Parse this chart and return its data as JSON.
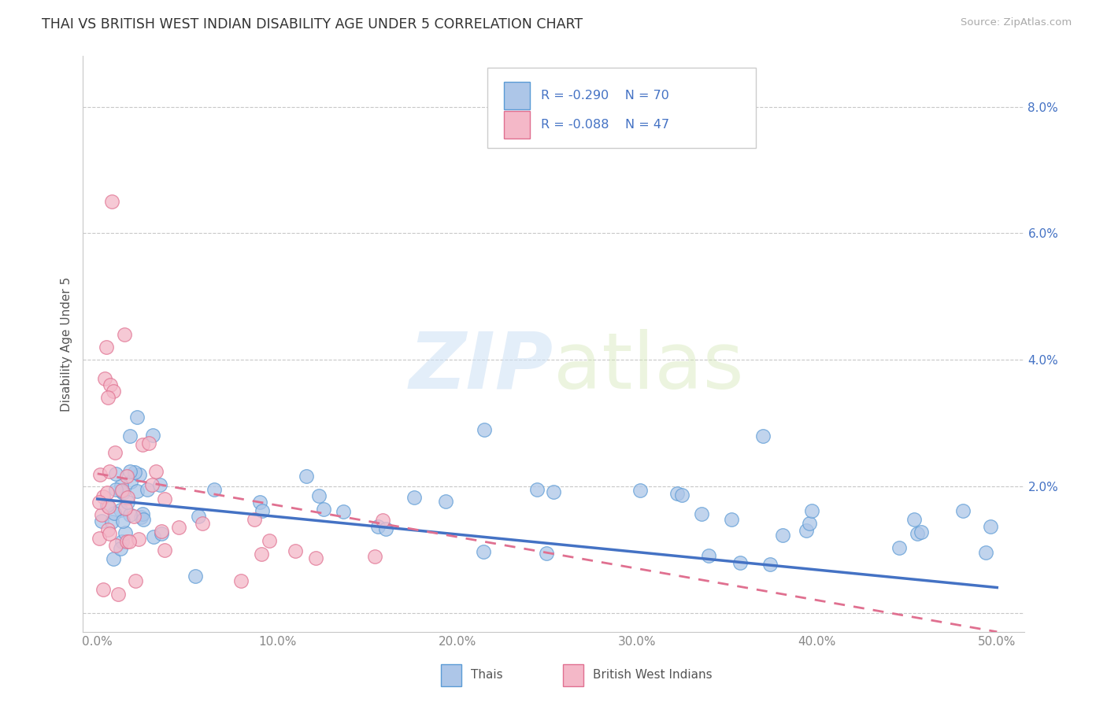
{
  "title": "THAI VS BRITISH WEST INDIAN DISABILITY AGE UNDER 5 CORRELATION CHART",
  "source": "Source: ZipAtlas.com",
  "ylabel": "Disability Age Under 5",
  "xlim": [
    -0.008,
    0.515
  ],
  "ylim": [
    -0.003,
    0.088
  ],
  "xticks": [
    0.0,
    0.1,
    0.2,
    0.3,
    0.4,
    0.5
  ],
  "xtick_labels": [
    "0.0%",
    "10.0%",
    "20.0%",
    "30.0%",
    "40.0%",
    "50.0%"
  ],
  "yticks": [
    0.0,
    0.02,
    0.04,
    0.06,
    0.08
  ],
  "ytick_labels_right": [
    "",
    "2.0%",
    "4.0%",
    "6.0%",
    "8.0%"
  ],
  "background_color": "#ffffff",
  "grid_color": "#c8c8c8",
  "thai_fill": "#adc6e8",
  "thai_edge": "#5b9bd5",
  "bwi_fill": "#f4b8c8",
  "bwi_edge": "#e07090",
  "thai_R": -0.29,
  "thai_N": 70,
  "bwi_R": -0.088,
  "bwi_N": 47,
  "thai_line_color": "#4472c4",
  "bwi_line_color": "#e07090",
  "legend_text_color": "#4472c4",
  "axis_color": "#888888",
  "thai_line_x0": 0.0,
  "thai_line_y0": 0.018,
  "thai_line_x1": 0.5,
  "thai_line_y1": 0.004,
  "bwi_line_x0": 0.0,
  "bwi_line_y0": 0.022,
  "bwi_line_x1": 0.5,
  "bwi_line_y1": -0.003
}
